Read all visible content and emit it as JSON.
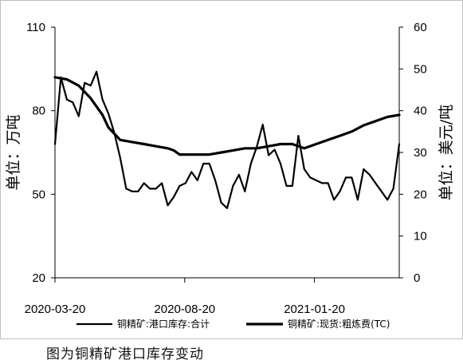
{
  "caption": "图为铜精矿港口库存变动",
  "chart_data": {
    "type": "line",
    "title": "",
    "x_ticks": [
      "2020-03-20",
      "2020-08-20",
      "2021-01-20"
    ],
    "x_range": [
      "2020-03-20",
      "2021-04-30"
    ],
    "y_left": {
      "label": "单位：万吨",
      "range": [
        20,
        110
      ],
      "ticks": [
        "110",
        "80",
        "50",
        "20"
      ]
    },
    "y_right": {
      "label": "单位：美元/吨",
      "range": [
        0,
        60
      ],
      "ticks": [
        "60",
        "50",
        "40",
        "30",
        "20",
        "10",
        "0"
      ]
    },
    "legend_position": "bottom",
    "series": [
      {
        "name": "铜精矿:港口库存:合计",
        "axis": "left",
        "x": [
          "2020-03-20",
          "2020-03-27",
          "2020-04-03",
          "2020-04-10",
          "2020-04-17",
          "2020-04-24",
          "2020-05-01",
          "2020-05-08",
          "2020-05-15",
          "2020-05-22",
          "2020-05-29",
          "2020-06-05",
          "2020-06-12",
          "2020-06-19",
          "2020-06-26",
          "2020-07-03",
          "2020-07-10",
          "2020-07-17",
          "2020-07-24",
          "2020-07-31",
          "2020-08-07",
          "2020-08-14",
          "2020-08-21",
          "2020-08-28",
          "2020-09-04",
          "2020-09-11",
          "2020-09-18",
          "2020-09-25",
          "2020-10-02",
          "2020-10-09",
          "2020-10-16",
          "2020-10-23",
          "2020-10-30",
          "2020-11-06",
          "2020-11-13",
          "2020-11-20",
          "2020-11-27",
          "2020-12-04",
          "2020-12-11",
          "2020-12-18",
          "2020-12-25",
          "2021-01-01",
          "2021-01-08",
          "2021-01-15",
          "2021-01-22",
          "2021-01-29",
          "2021-02-05",
          "2021-02-12",
          "2021-02-19",
          "2021-02-26",
          "2021-03-05",
          "2021-03-12",
          "2021-03-19",
          "2021-03-26",
          "2021-04-02",
          "2021-04-09",
          "2021-04-16",
          "2021-04-23",
          "2021-04-30"
        ],
        "values": [
          68,
          92,
          84,
          83,
          78,
          90,
          89,
          94,
          84,
          79,
          72,
          63,
          52,
          51,
          51,
          54,
          52,
          52,
          54,
          46,
          49,
          53,
          54,
          58,
          55,
          61,
          61,
          55,
          47,
          45,
          53,
          57,
          51,
          61,
          67,
          75,
          64,
          66,
          61,
          53,
          53,
          71,
          59,
          56,
          55,
          54,
          54,
          48,
          51,
          56,
          56,
          48,
          59,
          57,
          54,
          51,
          48,
          52,
          68
        ]
      },
      {
        "name": "铜精矿:现货:粗炼费(TC)",
        "axis": "right",
        "x": [
          "2020-03-20",
          "2020-04-03",
          "2020-04-17",
          "2020-05-01",
          "2020-05-08",
          "2020-05-15",
          "2020-05-22",
          "2020-06-05",
          "2020-06-19",
          "2020-07-03",
          "2020-07-17",
          "2020-07-31",
          "2020-08-07",
          "2020-08-14",
          "2020-08-28",
          "2020-09-18",
          "2020-10-02",
          "2020-10-16",
          "2020-10-30",
          "2020-11-13",
          "2020-11-27",
          "2020-12-11",
          "2020-12-25",
          "2021-01-08",
          "2021-01-22",
          "2021-02-05",
          "2021-02-19",
          "2021-03-05",
          "2021-03-19",
          "2021-03-26",
          "2021-04-02",
          "2021-04-16",
          "2021-04-30"
        ],
        "values": [
          48,
          47.5,
          46,
          43,
          41,
          39,
          36,
          33,
          32.5,
          32,
          31.5,
          31,
          30.5,
          29.5,
          29.5,
          29.5,
          30,
          30.5,
          31,
          31,
          31.5,
          32,
          32,
          31,
          32,
          33,
          34,
          35,
          36.5,
          37,
          37.5,
          38.5,
          39
        ]
      }
    ]
  }
}
